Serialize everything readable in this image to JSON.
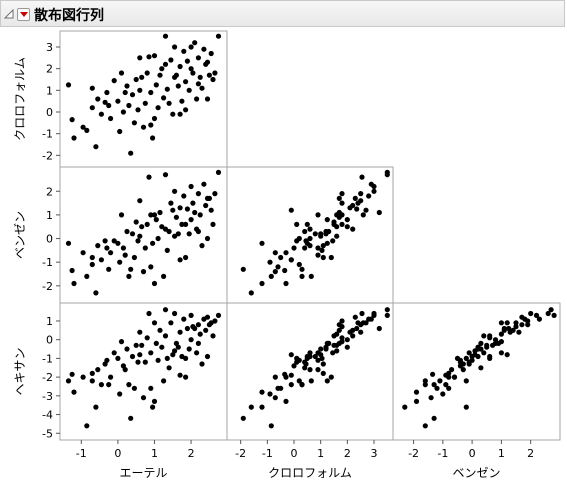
{
  "window": {
    "title": "散布図行列",
    "collapse_icon": "collapse-triangle-icon",
    "menu_icon": "red-triangle-menu-icon"
  },
  "chart_data": {
    "type": "scatter",
    "title": "散布図行列",
    "variables": [
      "エーテル",
      "クロロフォルム",
      "ベンゼン",
      "ヘキサン"
    ],
    "ranges": {
      "エーテル": [
        -1.5,
        2.9
      ],
      "クロロフォルム": [
        -2.4,
        3.6
      ],
      "ベンゼン": [
        -2.6,
        2.9
      ],
      "ヘキサン": [
        -5.2,
        1.8
      ]
    },
    "ticks": {
      "エーテル": [
        -1,
        0,
        1,
        2
      ],
      "クロロフォルム": [
        -2,
        -1,
        0,
        1,
        2,
        3
      ],
      "ベンゼン": [
        -2,
        -1,
        0,
        1,
        2
      ],
      "ヘキサン": [
        -5,
        -4,
        -3,
        -2,
        -1,
        0,
        1
      ]
    },
    "grid": false,
    "panels": [
      {
        "x": "エーテル",
        "y": "クロロフォルム"
      },
      {
        "x": "エーテル",
        "y": "ベンゼン"
      },
      {
        "x": "クロロフォルム",
        "y": "ベンゼン"
      },
      {
        "x": "エーテル",
        "y": "ヘキサン"
      },
      {
        "x": "クロロフォルム",
        "y": "ヘキサン"
      },
      {
        "x": "ベンゼン",
        "y": "ヘキサン"
      }
    ],
    "observations": [
      [
        -1.35,
        1.25,
        -0.2,
        -2.2
      ],
      [
        -1.25,
        -0.35,
        -1.35,
        -1.85
      ],
      [
        -1.2,
        -1.2,
        -1.9,
        -2.8
      ],
      [
        -0.95,
        -0.7,
        -0.6,
        -2.0
      ],
      [
        -0.85,
        -0.85,
        -1.6,
        -4.6
      ],
      [
        -0.7,
        0.2,
        -1.1,
        -2.2
      ],
      [
        -0.6,
        -1.6,
        -2.3,
        -3.6
      ],
      [
        -0.55,
        0.6,
        -0.3,
        -1.6
      ],
      [
        -0.45,
        -0.1,
        -0.9,
        -2.4
      ],
      [
        -0.35,
        0.45,
        -0.1,
        -1.3
      ],
      [
        -0.3,
        0.9,
        -0.4,
        -1.1
      ],
      [
        -0.2,
        -0.3,
        -0.6,
        -2.0
      ],
      [
        -0.1,
        1.45,
        -0.1,
        -0.7
      ],
      [
        0.0,
        0.5,
        -0.2,
        -1.0
      ],
      [
        0.05,
        -0.9,
        -1.0,
        -2.9
      ],
      [
        0.15,
        0.0,
        -0.4,
        -1.4
      ],
      [
        0.25,
        1.2,
        0.3,
        -0.5
      ],
      [
        0.3,
        0.3,
        -1.6,
        -2.4
      ],
      [
        0.35,
        -1.9,
        -1.3,
        -4.2
      ],
      [
        0.4,
        0.8,
        0.2,
        -0.9
      ],
      [
        0.45,
        -0.5,
        -0.8,
        -2.6
      ],
      [
        0.55,
        0.1,
        -0.1,
        -1.2
      ],
      [
        0.6,
        1.0,
        0.1,
        -0.8
      ],
      [
        0.65,
        1.6,
        0.5,
        -0.3
      ],
      [
        0.7,
        -0.7,
        -1.4,
        -3.1
      ],
      [
        0.75,
        0.4,
        -0.4,
        -1.2
      ],
      [
        0.8,
        1.8,
        0.6,
        0.1
      ],
      [
        0.85,
        2.55,
        2.6,
        1.4
      ],
      [
        0.9,
        0.9,
        1.0,
        -0.7
      ],
      [
        0.95,
        -1.2,
        -0.2,
        -3.6
      ],
      [
        1.0,
        2.6,
        1.0,
        0.9
      ],
      [
        1.05,
        1.25,
        0.8,
        -0.2
      ],
      [
        1.1,
        0.2,
        0.0,
        -1.1
      ],
      [
        1.15,
        1.7,
        1.1,
        0.5
      ],
      [
        1.2,
        2.0,
        0.5,
        -0.4
      ],
      [
        1.25,
        0.65,
        -1.6,
        -2.2
      ],
      [
        1.3,
        2.2,
        0.4,
        0.2
      ],
      [
        1.35,
        1.05,
        -0.5,
        -1.0
      ],
      [
        1.4,
        0.4,
        0.3,
        -1.5
      ],
      [
        1.45,
        2.4,
        1.5,
        0.9
      ],
      [
        1.5,
        -0.1,
        1.2,
        -0.8
      ],
      [
        1.55,
        3.0,
        2.0,
        1.4
      ],
      [
        1.6,
        1.7,
        0.9,
        -0.2
      ],
      [
        1.65,
        1.2,
        0.2,
        -0.4
      ],
      [
        1.7,
        2.1,
        1.3,
        0.4
      ],
      [
        1.75,
        0.5,
        0.6,
        -0.9
      ],
      [
        1.8,
        2.8,
        1.8,
        1.1
      ],
      [
        1.85,
        1.4,
        -0.8,
        -2.0
      ],
      [
        1.9,
        2.35,
        1.25,
        0.6
      ],
      [
        1.95,
        1.0,
        0.2,
        -0.5
      ],
      [
        2.0,
        2.0,
        0.8,
        0.0
      ],
      [
        2.05,
        1.8,
        1.5,
        0.7
      ],
      [
        2.1,
        3.2,
        1.1,
        0.6
      ],
      [
        2.15,
        0.6,
        0.4,
        -0.7
      ],
      [
        2.2,
        2.5,
        1.9,
        0.8
      ],
      [
        2.25,
        1.6,
        1.0,
        0.3
      ],
      [
        2.3,
        1.1,
        -0.3,
        -1.3
      ],
      [
        2.35,
        2.9,
        2.3,
        1.1
      ],
      [
        2.4,
        2.2,
        1.4,
        0.5
      ],
      [
        2.45,
        0.6,
        0.0,
        -0.9
      ],
      [
        2.5,
        1.7,
        1.7,
        0.8
      ],
      [
        2.55,
        2.7,
        1.2,
        0.9
      ],
      [
        2.6,
        1.5,
        0.6,
        0.2
      ],
      [
        2.65,
        1.8,
        1.9,
        1.0
      ],
      [
        2.75,
        3.5,
        2.8,
        1.3
      ],
      [
        1.0,
        -0.3,
        -1.9,
        -3.3
      ],
      [
        0.2,
        0.9,
        -0.7,
        -1.6
      ],
      [
        0.5,
        1.5,
        0.7,
        -0.3
      ],
      [
        1.7,
        -0.1,
        -0.9,
        -1.9
      ],
      [
        2.2,
        1.3,
        0.3,
        -0.2
      ],
      [
        -0.25,
        0.3,
        -1.3,
        -2.4
      ],
      [
        1.3,
        3.5,
        2.7,
        1.6
      ],
      [
        0.6,
        2.5,
        1.6,
        0.4
      ],
      [
        1.85,
        0.1,
        0.6,
        -1.0
      ],
      [
        2.0,
        3.0,
        2.2,
        1.3
      ],
      [
        0.1,
        1.8,
        1.0,
        -0.1
      ],
      [
        1.55,
        1.6,
        0.1,
        -0.6
      ],
      [
        0.9,
        -0.6,
        -1.2,
        -2.6
      ],
      [
        2.45,
        2.3,
        1.7,
        1.2
      ],
      [
        -0.7,
        1.1,
        -0.8,
        -1.8
      ]
    ]
  }
}
